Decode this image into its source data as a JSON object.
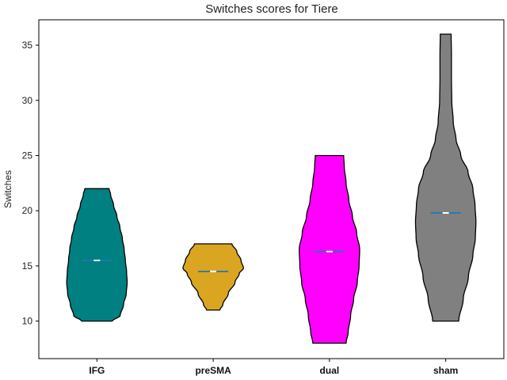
{
  "chart_data": {
    "type": "violin",
    "title": "Switches scores for Tiere",
    "xlabel": "",
    "ylabel": "Switches",
    "ylim": [
      6.6,
      37.3
    ],
    "yticks": [
      10,
      15,
      20,
      25,
      30,
      35
    ],
    "categories": [
      "IFG",
      "preSMA",
      "dual",
      "sham"
    ],
    "series": [
      {
        "category": "IFG",
        "color": "#008080",
        "min": 10,
        "max": 22,
        "mean": 15.5,
        "median": 15.5,
        "profile": [
          [
            10,
            0.5
          ],
          [
            10.5,
            0.77
          ],
          [
            11.5,
            0.88
          ],
          [
            12.5,
            0.97
          ],
          [
            13.5,
            1.0
          ],
          [
            14.5,
            0.98
          ],
          [
            15.5,
            0.94
          ],
          [
            16.5,
            0.9
          ],
          [
            17.5,
            0.84
          ],
          [
            18.5,
            0.76
          ],
          [
            19.5,
            0.66
          ],
          [
            20.5,
            0.55
          ],
          [
            21.5,
            0.45
          ],
          [
            22,
            0.4
          ]
        ]
      },
      {
        "category": "preSMA",
        "color": "#DAA520",
        "min": 11,
        "max": 17,
        "mean": 14.5,
        "median": 14.5,
        "profile": [
          [
            11,
            0.22
          ],
          [
            11.5,
            0.32
          ],
          [
            12.5,
            0.5
          ],
          [
            13.5,
            0.72
          ],
          [
            14.3,
            0.86
          ],
          [
            14.8,
            1.0
          ],
          [
            15.5,
            0.92
          ],
          [
            16.3,
            0.78
          ],
          [
            17,
            0.62
          ]
        ]
      },
      {
        "category": "dual",
        "color": "#FF00FF",
        "min": 8,
        "max": 25,
        "mean": 16.3,
        "median": 16.3,
        "profile": [
          [
            8,
            0.55
          ],
          [
            9,
            0.62
          ],
          [
            10.5,
            0.7
          ],
          [
            12,
            0.8
          ],
          [
            13.5,
            0.92
          ],
          [
            15,
            0.98
          ],
          [
            16.5,
            1.0
          ],
          [
            18,
            0.9
          ],
          [
            19.5,
            0.76
          ],
          [
            21,
            0.64
          ],
          [
            22.5,
            0.55
          ],
          [
            24,
            0.49
          ],
          [
            25,
            0.47
          ]
        ]
      },
      {
        "category": "sham",
        "color": "#808080",
        "min": 10,
        "max": 36,
        "mean": 19.8,
        "median": 19.8,
        "profile": [
          [
            10,
            0.43
          ],
          [
            12,
            0.58
          ],
          [
            14,
            0.75
          ],
          [
            16,
            0.9
          ],
          [
            17.5,
            0.98
          ],
          [
            19,
            1.0
          ],
          [
            20.5,
            0.97
          ],
          [
            22,
            0.9
          ],
          [
            23.5,
            0.74
          ],
          [
            25,
            0.5
          ],
          [
            26.5,
            0.34
          ],
          [
            28,
            0.25
          ],
          [
            30,
            0.2
          ],
          [
            32,
            0.19
          ],
          [
            34,
            0.19
          ],
          [
            36,
            0.18
          ]
        ]
      }
    ],
    "stat_line_colors": {
      "mean": "#1f77b4",
      "median": "#ffffff"
    },
    "grid": false,
    "legend": "none"
  }
}
